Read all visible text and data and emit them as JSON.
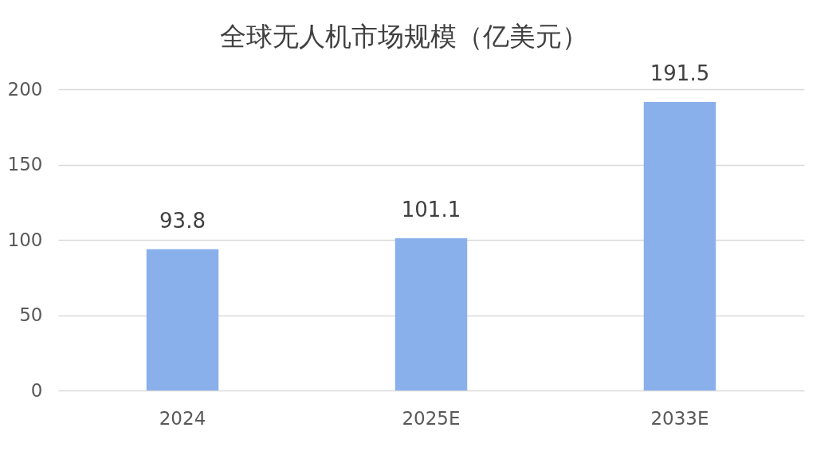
{
  "chart_data": {
    "type": "bar",
    "title": "全球无人机市场规模（亿美元）",
    "categories": [
      "2024",
      "2025E",
      "2033E"
    ],
    "values": [
      93.8,
      101.1,
      191.5
    ],
    "color": "#8ab0ec",
    "ylim": [
      0,
      200
    ],
    "yticks": [
      0,
      50,
      100,
      150,
      200
    ],
    "grid": "y",
    "data_labels": true
  }
}
